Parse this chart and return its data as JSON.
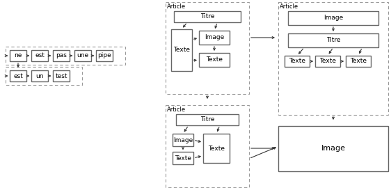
{
  "bg_color": "#ffffff",
  "box_color": "#ffffff",
  "box_edge": "#666666",
  "dash_color": "#999999",
  "arrow_color": "#333333",
  "font_size": 6.5,
  "label_font_size": 6.0,
  "left_chain1_labels": [
    "ne",
    "est",
    "pas",
    "une",
    "pipe"
  ],
  "left_chain2_labels": [
    "est",
    "un",
    "test"
  ]
}
